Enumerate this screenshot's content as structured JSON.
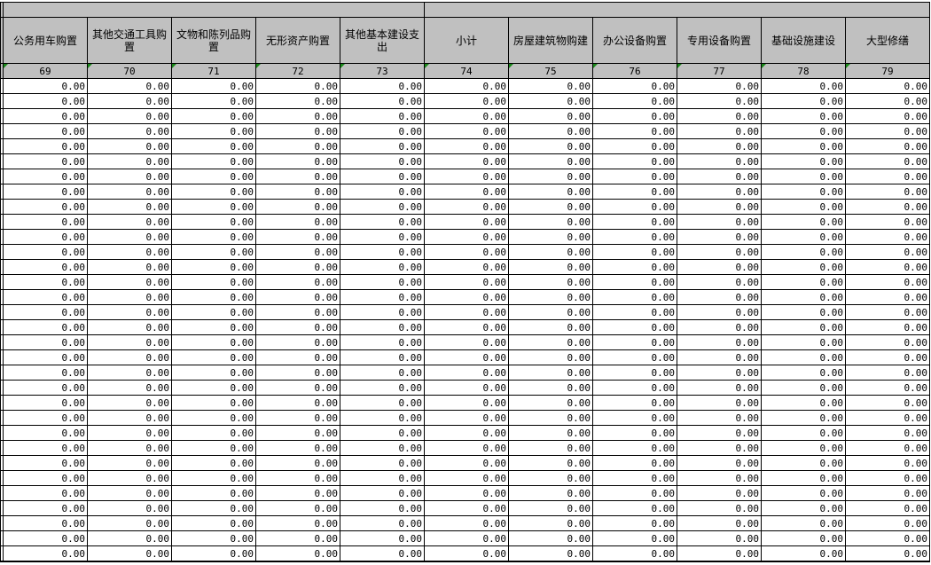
{
  "columns": [
    {
      "title": "公务用车购置",
      "index": "69"
    },
    {
      "title": "其他交通工具购置",
      "index": "70"
    },
    {
      "title": "文物和陈列品购置",
      "index": "71"
    },
    {
      "title": "无形资产购置",
      "index": "72"
    },
    {
      "title": "其他基本建设支出",
      "index": "73"
    },
    {
      "title": "小计",
      "index": "74"
    },
    {
      "title": "房屋建筑物购建",
      "index": "75"
    },
    {
      "title": "办公设备购置",
      "index": "76"
    },
    {
      "title": "专用设备购置",
      "index": "77"
    },
    {
      "title": "基础设施建设",
      "index": "78"
    },
    {
      "title": "大型修缮",
      "index": "79"
    }
  ],
  "colors": {
    "header_bg": "#c0c0c0",
    "grid": "#000000",
    "marker": "#1a8a1a"
  },
  "rows": [
    [
      "0.00",
      "0.00",
      "0.00",
      "0.00",
      "0.00",
      "0.00",
      "0.00",
      "0.00",
      "0.00",
      "0.00",
      "0.00"
    ],
    [
      "0.00",
      "0.00",
      "0.00",
      "0.00",
      "0.00",
      "0.00",
      "0.00",
      "0.00",
      "0.00",
      "0.00",
      "0.00"
    ],
    [
      "0.00",
      "0.00",
      "0.00",
      "0.00",
      "0.00",
      "0.00",
      "0.00",
      "0.00",
      "0.00",
      "0.00",
      "0.00"
    ],
    [
      "0.00",
      "0.00",
      "0.00",
      "0.00",
      "0.00",
      "0.00",
      "0.00",
      "0.00",
      "0.00",
      "0.00",
      "0.00"
    ],
    [
      "0.00",
      "0.00",
      "0.00",
      "0.00",
      "0.00",
      "0.00",
      "0.00",
      "0.00",
      "0.00",
      "0.00",
      "0.00"
    ],
    [
      "0.00",
      "0.00",
      "0.00",
      "0.00",
      "0.00",
      "0.00",
      "0.00",
      "0.00",
      "0.00",
      "0.00",
      "0.00"
    ],
    [
      "0.00",
      "0.00",
      "0.00",
      "0.00",
      "0.00",
      "0.00",
      "0.00",
      "0.00",
      "0.00",
      "0.00",
      "0.00"
    ],
    [
      "0.00",
      "0.00",
      "0.00",
      "0.00",
      "0.00",
      "0.00",
      "0.00",
      "0.00",
      "0.00",
      "0.00",
      "0.00"
    ],
    [
      "0.00",
      "0.00",
      "0.00",
      "0.00",
      "0.00",
      "0.00",
      "0.00",
      "0.00",
      "0.00",
      "0.00",
      "0.00"
    ],
    [
      "0.00",
      "0.00",
      "0.00",
      "0.00",
      "0.00",
      "0.00",
      "0.00",
      "0.00",
      "0.00",
      "0.00",
      "0.00"
    ],
    [
      "0.00",
      "0.00",
      "0.00",
      "0.00",
      "0.00",
      "0.00",
      "0.00",
      "0.00",
      "0.00",
      "0.00",
      "0.00"
    ],
    [
      "0.00",
      "0.00",
      "0.00",
      "0.00",
      "0.00",
      "0.00",
      "0.00",
      "0.00",
      "0.00",
      "0.00",
      "0.00"
    ],
    [
      "0.00",
      "0.00",
      "0.00",
      "0.00",
      "0.00",
      "0.00",
      "0.00",
      "0.00",
      "0.00",
      "0.00",
      "0.00"
    ],
    [
      "0.00",
      "0.00",
      "0.00",
      "0.00",
      "0.00",
      "0.00",
      "0.00",
      "0.00",
      "0.00",
      "0.00",
      "0.00"
    ],
    [
      "0.00",
      "0.00",
      "0.00",
      "0.00",
      "0.00",
      "0.00",
      "0.00",
      "0.00",
      "0.00",
      "0.00",
      "0.00"
    ],
    [
      "0.00",
      "0.00",
      "0.00",
      "0.00",
      "0.00",
      "0.00",
      "0.00",
      "0.00",
      "0.00",
      "0.00",
      "0.00"
    ],
    [
      "0.00",
      "0.00",
      "0.00",
      "0.00",
      "0.00",
      "0.00",
      "0.00",
      "0.00",
      "0.00",
      "0.00",
      "0.00"
    ],
    [
      "0.00",
      "0.00",
      "0.00",
      "0.00",
      "0.00",
      "0.00",
      "0.00",
      "0.00",
      "0.00",
      "0.00",
      "0.00"
    ],
    [
      "0.00",
      "0.00",
      "0.00",
      "0.00",
      "0.00",
      "0.00",
      "0.00",
      "0.00",
      "0.00",
      "0.00",
      "0.00"
    ],
    [
      "0.00",
      "0.00",
      "0.00",
      "0.00",
      "0.00",
      "0.00",
      "0.00",
      "0.00",
      "0.00",
      "0.00",
      "0.00"
    ],
    [
      "0.00",
      "0.00",
      "0.00",
      "0.00",
      "0.00",
      "0.00",
      "0.00",
      "0.00",
      "0.00",
      "0.00",
      "0.00"
    ],
    [
      "0.00",
      "0.00",
      "0.00",
      "0.00",
      "0.00",
      "0.00",
      "0.00",
      "0.00",
      "0.00",
      "0.00",
      "0.00"
    ],
    [
      "0.00",
      "0.00",
      "0.00",
      "0.00",
      "0.00",
      "0.00",
      "0.00",
      "0.00",
      "0.00",
      "0.00",
      "0.00"
    ],
    [
      "0.00",
      "0.00",
      "0.00",
      "0.00",
      "0.00",
      "0.00",
      "0.00",
      "0.00",
      "0.00",
      "0.00",
      "0.00"
    ],
    [
      "0.00",
      "0.00",
      "0.00",
      "0.00",
      "0.00",
      "0.00",
      "0.00",
      "0.00",
      "0.00",
      "0.00",
      "0.00"
    ],
    [
      "0.00",
      "0.00",
      "0.00",
      "0.00",
      "0.00",
      "0.00",
      "0.00",
      "0.00",
      "0.00",
      "0.00",
      "0.00"
    ],
    [
      "0.00",
      "0.00",
      "0.00",
      "0.00",
      "0.00",
      "0.00",
      "0.00",
      "0.00",
      "0.00",
      "0.00",
      "0.00"
    ],
    [
      "0.00",
      "0.00",
      "0.00",
      "0.00",
      "0.00",
      "0.00",
      "0.00",
      "0.00",
      "0.00",
      "0.00",
      "0.00"
    ],
    [
      "0.00",
      "0.00",
      "0.00",
      "0.00",
      "0.00",
      "0.00",
      "0.00",
      "0.00",
      "0.00",
      "0.00",
      "0.00"
    ],
    [
      "0.00",
      "0.00",
      "0.00",
      "0.00",
      "0.00",
      "0.00",
      "0.00",
      "0.00",
      "0.00",
      "0.00",
      "0.00"
    ],
    [
      "0.00",
      "0.00",
      "0.00",
      "0.00",
      "0.00",
      "0.00",
      "0.00",
      "0.00",
      "0.00",
      "0.00",
      "0.00"
    ],
    [
      "0.00",
      "0.00",
      "0.00",
      "0.00",
      "0.00",
      "0.00",
      "0.00",
      "0.00",
      "0.00",
      "0.00",
      "0.00"
    ]
  ]
}
